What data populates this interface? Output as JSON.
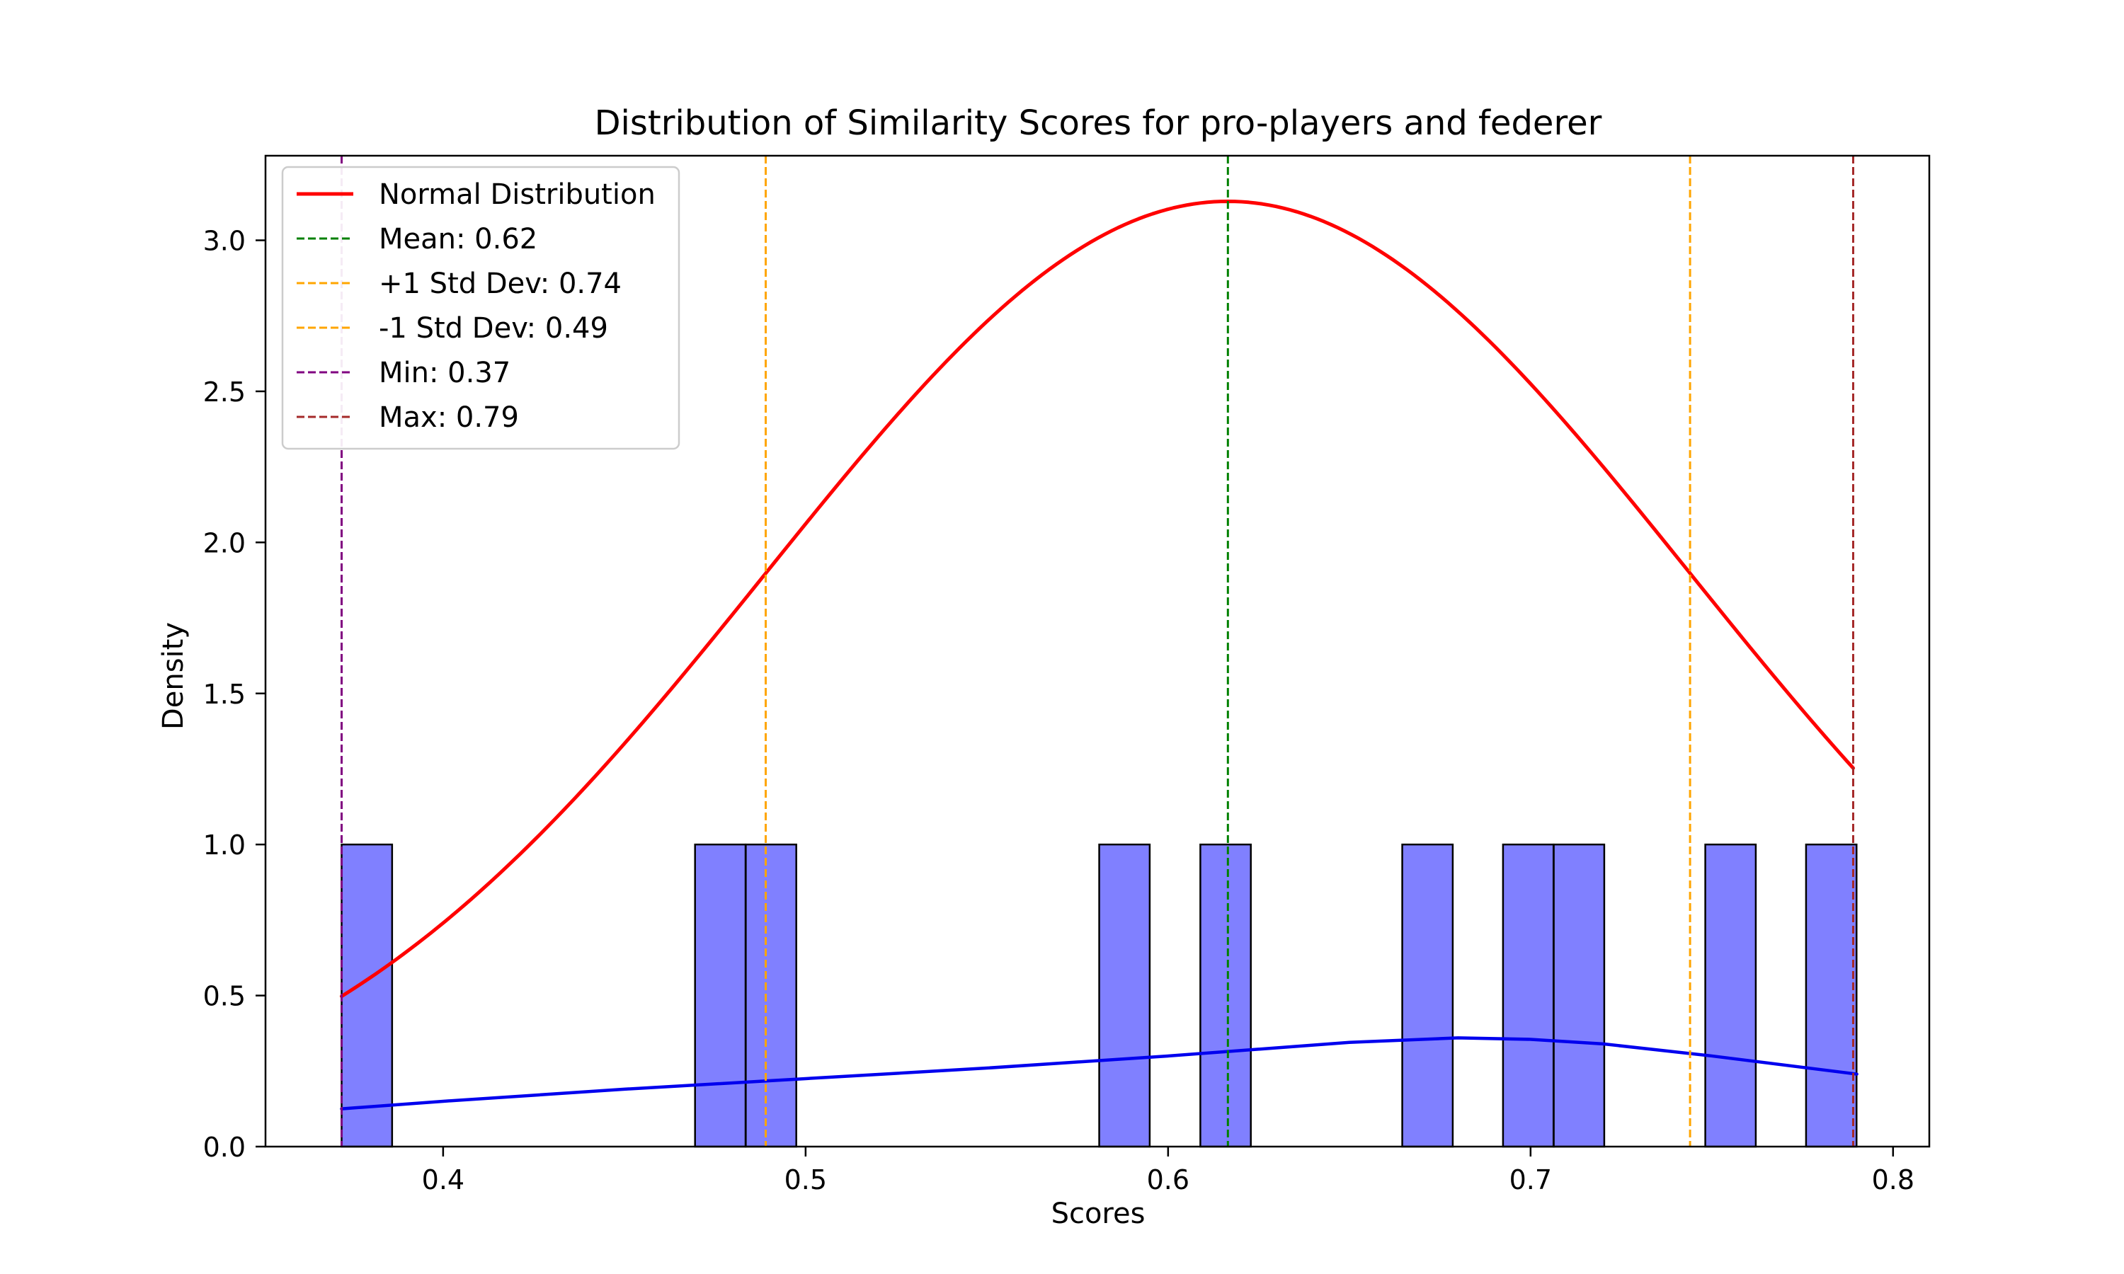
{
  "chart_data": {
    "type": "bar",
    "title": "Distribution of Similarity Scores for pro-players and federer",
    "xlabel": "Scores",
    "ylabel": "Density",
    "xlim": [
      0.351,
      0.81
    ],
    "ylim": [
      0,
      3.28
    ],
    "xticks": [
      0.4,
      0.5,
      0.6,
      0.7,
      0.8
    ],
    "xtick_labels": [
      "0.4",
      "0.5",
      "0.6",
      "0.7",
      "0.8"
    ],
    "yticks": [
      0.0,
      0.5,
      1.0,
      1.5,
      2.0,
      2.5,
      3.0
    ],
    "ytick_labels": [
      "0.0",
      "0.5",
      "1.0",
      "1.5",
      "2.0",
      "2.5",
      "3.0"
    ],
    "grid": false,
    "legend_position": "top-left",
    "histogram": {
      "color": "#8080ff",
      "edge_color": "#000000",
      "bin_width": 0.01393,
      "bins": [
        {
          "x0": 0.372,
          "density": 1.0
        },
        {
          "x0": 0.4695,
          "density": 1.0
        },
        {
          "x0": 0.4835,
          "density": 1.0
        },
        {
          "x0": 0.581,
          "density": 1.0
        },
        {
          "x0": 0.6089,
          "density": 1.0
        },
        {
          "x0": 0.6646,
          "density": 1.0
        },
        {
          "x0": 0.6924,
          "density": 1.0
        },
        {
          "x0": 0.7064,
          "density": 1.0
        },
        {
          "x0": 0.7482,
          "density": 1.0
        },
        {
          "x0": 0.776,
          "density": 1.0
        }
      ]
    },
    "kde_curve": {
      "color": "#0000ee",
      "x": [
        0.372,
        0.4,
        0.45,
        0.5,
        0.55,
        0.6,
        0.65,
        0.68,
        0.7,
        0.72,
        0.75,
        0.79
      ],
      "y": [
        0.125,
        0.15,
        0.19,
        0.225,
        0.26,
        0.3,
        0.345,
        0.36,
        0.355,
        0.34,
        0.3,
        0.24
      ]
    },
    "series": [
      {
        "name": "Normal Distribution",
        "type": "line",
        "color": "#ff0000",
        "mean": 0.6165,
        "std": 0.1275,
        "x_range": [
          0.372,
          0.789
        ]
      }
    ],
    "reference_lines": [
      {
        "name": "Mean: 0.62",
        "value": 0.6165,
        "color": "#008000"
      },
      {
        "name": "+1 Std Dev: 0.74",
        "value": 0.744,
        "color": "#ffa500"
      },
      {
        "name": "-1 Std Dev: 0.49",
        "value": 0.489,
        "color": "#ffa500"
      },
      {
        "name": "Min: 0.37",
        "value": 0.372,
        "color": "#800080"
      },
      {
        "name": "Max: 0.79",
        "value": 0.789,
        "color": "#a52a2a"
      }
    ]
  }
}
